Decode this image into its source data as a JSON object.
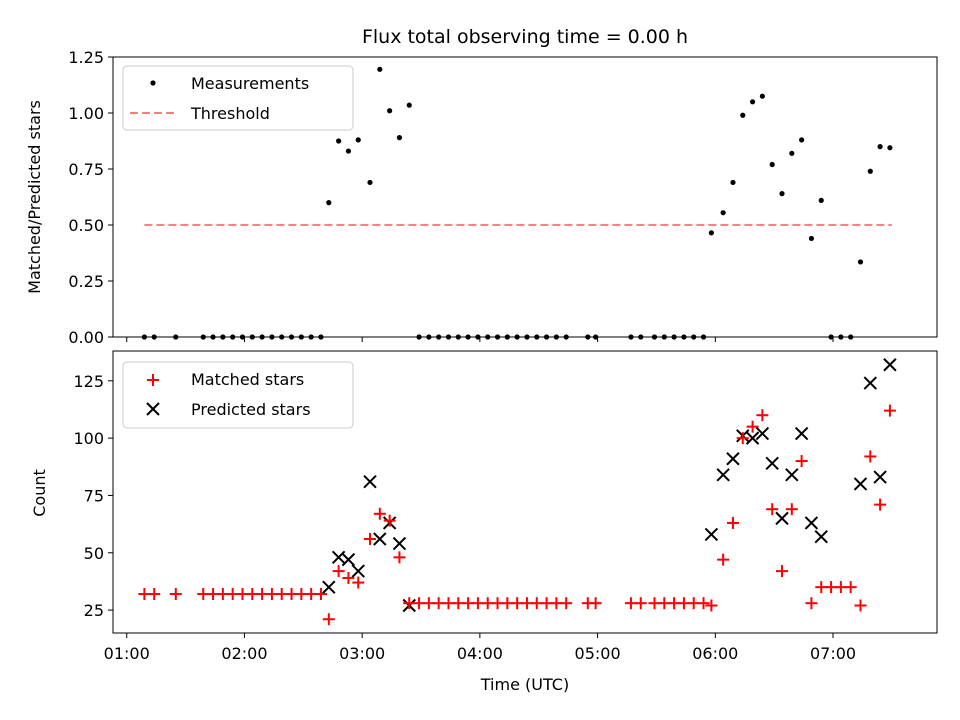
{
  "chart_data": [
    {
      "type": "scatter",
      "title": "Flux total observing time = 0.00 h",
      "xlabel": "",
      "ylabel": "Matched/Predicted stars",
      "ylim": [
        0,
        1.25
      ],
      "yticks": [
        "0.00",
        "0.25",
        "0.50",
        "0.75",
        "1.00",
        "1.25"
      ],
      "legend": {
        "position": "top-left",
        "entries": [
          "Measurements",
          "Threshold"
        ]
      },
      "threshold": {
        "name": "Threshold",
        "value": 0.5,
        "x_start": "01:09",
        "x_end": "07:30",
        "color": "#ff7f7f"
      },
      "series": [
        {
          "name": "Measurements",
          "color": "#000000",
          "marker": "dot",
          "points": [
            [
              "01:09",
              0.0
            ],
            [
              "01:14",
              0.0
            ],
            [
              "01:25",
              0.0
            ],
            [
              "01:39",
              0.0
            ],
            [
              "01:44",
              0.0
            ],
            [
              "01:49",
              0.0
            ],
            [
              "01:54",
              0.0
            ],
            [
              "01:59",
              0.0
            ],
            [
              "02:04",
              0.0
            ],
            [
              "02:09",
              0.0
            ],
            [
              "02:14",
              0.0
            ],
            [
              "02:19",
              0.0
            ],
            [
              "02:24",
              0.0
            ],
            [
              "02:29",
              0.0
            ],
            [
              "02:34",
              0.0
            ],
            [
              "02:39",
              0.0
            ],
            [
              "02:43",
              0.6
            ],
            [
              "02:48",
              0.875
            ],
            [
              "02:53",
              0.83
            ],
            [
              "02:58",
              0.88
            ],
            [
              "03:04",
              0.69
            ],
            [
              "03:09",
              1.195
            ],
            [
              "03:14",
              1.01
            ],
            [
              "03:19",
              0.89
            ],
            [
              "03:24",
              1.035
            ],
            [
              "03:29",
              0.0
            ],
            [
              "03:34",
              0.0
            ],
            [
              "03:39",
              0.0
            ],
            [
              "03:44",
              0.0
            ],
            [
              "03:49",
              0.0
            ],
            [
              "03:54",
              0.0
            ],
            [
              "03:59",
              0.0
            ],
            [
              "04:04",
              0.0
            ],
            [
              "04:09",
              0.0
            ],
            [
              "04:14",
              0.0
            ],
            [
              "04:19",
              0.0
            ],
            [
              "04:24",
              0.0
            ],
            [
              "04:29",
              0.0
            ],
            [
              "04:34",
              0.0
            ],
            [
              "04:39",
              0.0
            ],
            [
              "04:44",
              0.0
            ],
            [
              "04:55",
              0.0
            ],
            [
              "04:59",
              0.0
            ],
            [
              "05:17",
              0.0
            ],
            [
              "05:22",
              0.0
            ],
            [
              "05:29",
              0.0
            ],
            [
              "05:34",
              0.0
            ],
            [
              "05:39",
              0.0
            ],
            [
              "05:44",
              0.0
            ],
            [
              "05:49",
              0.0
            ],
            [
              "05:54",
              0.0
            ],
            [
              "05:58",
              0.465
            ],
            [
              "06:04",
              0.555
            ],
            [
              "06:09",
              0.69
            ],
            [
              "06:14",
              0.99
            ],
            [
              "06:19",
              1.05
            ],
            [
              "06:24",
              1.075
            ],
            [
              "06:29",
              0.77
            ],
            [
              "06:34",
              0.64
            ],
            [
              "06:39",
              0.82
            ],
            [
              "06:44",
              0.88
            ],
            [
              "06:49",
              0.44
            ],
            [
              "06:54",
              0.61
            ],
            [
              "06:59",
              0.0
            ],
            [
              "07:04",
              0.0
            ],
            [
              "07:09",
              0.0
            ],
            [
              "07:14",
              0.335
            ],
            [
              "07:19",
              0.74
            ],
            [
              "07:24",
              0.85
            ],
            [
              "07:29",
              0.845
            ]
          ]
        }
      ]
    },
    {
      "type": "scatter",
      "title": "",
      "xlabel": "Time (UTC)",
      "ylabel": "Count",
      "ylim": [
        15,
        138
      ],
      "yticks": [
        "25",
        "50",
        "75",
        "100",
        "125"
      ],
      "xlim": [
        "00:53",
        "07:53"
      ],
      "xticks": [
        "01:00",
        "02:00",
        "03:00",
        "04:00",
        "05:00",
        "06:00",
        "07:00"
      ],
      "legend": {
        "position": "top-left",
        "entries": [
          "Matched stars",
          "Predicted stars"
        ]
      },
      "series": [
        {
          "name": "Matched stars",
          "color": "#ff0000",
          "marker": "plus",
          "points": [
            [
              "01:09",
              32
            ],
            [
              "01:14",
              32
            ],
            [
              "01:25",
              32
            ],
            [
              "01:39",
              32
            ],
            [
              "01:44",
              32
            ],
            [
              "01:49",
              32
            ],
            [
              "01:54",
              32
            ],
            [
              "01:59",
              32
            ],
            [
              "02:04",
              32
            ],
            [
              "02:09",
              32
            ],
            [
              "02:14",
              32
            ],
            [
              "02:19",
              32
            ],
            [
              "02:24",
              32
            ],
            [
              "02:29",
              32
            ],
            [
              "02:34",
              32
            ],
            [
              "02:39",
              32
            ],
            [
              "02:43",
              21
            ],
            [
              "02:48",
              42
            ],
            [
              "02:53",
              39
            ],
            [
              "02:58",
              37
            ],
            [
              "03:04",
              56
            ],
            [
              "03:09",
              67
            ],
            [
              "03:14",
              64
            ],
            [
              "03:19",
              48
            ],
            [
              "03:24",
              28
            ],
            [
              "03:29",
              28
            ],
            [
              "03:34",
              28
            ],
            [
              "03:39",
              28
            ],
            [
              "03:44",
              28
            ],
            [
              "03:49",
              28
            ],
            [
              "03:54",
              28
            ],
            [
              "03:59",
              28
            ],
            [
              "04:04",
              28
            ],
            [
              "04:09",
              28
            ],
            [
              "04:14",
              28
            ],
            [
              "04:19",
              28
            ],
            [
              "04:24",
              28
            ],
            [
              "04:29",
              28
            ],
            [
              "04:34",
              28
            ],
            [
              "04:39",
              28
            ],
            [
              "04:44",
              28
            ],
            [
              "04:55",
              28
            ],
            [
              "04:59",
              28
            ],
            [
              "05:17",
              28
            ],
            [
              "05:22",
              28
            ],
            [
              "05:29",
              28
            ],
            [
              "05:34",
              28
            ],
            [
              "05:39",
              28
            ],
            [
              "05:44",
              28
            ],
            [
              "05:49",
              28
            ],
            [
              "05:54",
              28
            ],
            [
              "05:58",
              27
            ],
            [
              "06:04",
              47
            ],
            [
              "06:09",
              63
            ],
            [
              "06:14",
              100
            ],
            [
              "06:19",
              105
            ],
            [
              "06:24",
              110
            ],
            [
              "06:29",
              69
            ],
            [
              "06:34",
              42
            ],
            [
              "06:39",
              69
            ],
            [
              "06:44",
              90
            ],
            [
              "06:49",
              28
            ],
            [
              "06:54",
              35
            ],
            [
              "06:59",
              35
            ],
            [
              "07:04",
              35
            ],
            [
              "07:09",
              35
            ],
            [
              "07:14",
              27
            ],
            [
              "07:19",
              92
            ],
            [
              "07:24",
              71
            ],
            [
              "07:29",
              112
            ]
          ]
        },
        {
          "name": "Predicted stars",
          "color": "#000000",
          "marker": "x",
          "points": [
            [
              "02:43",
              35
            ],
            [
              "02:48",
              48
            ],
            [
              "02:53",
              47
            ],
            [
              "02:58",
              42
            ],
            [
              "03:04",
              81
            ],
            [
              "03:09",
              56
            ],
            [
              "03:14",
              63
            ],
            [
              "03:19",
              54
            ],
            [
              "03:24",
              27
            ],
            [
              "05:58",
              58
            ],
            [
              "06:04",
              84
            ],
            [
              "06:09",
              91
            ],
            [
              "06:14",
              101
            ],
            [
              "06:19",
              100
            ],
            [
              "06:24",
              102
            ],
            [
              "06:29",
              89
            ],
            [
              "06:34",
              65
            ],
            [
              "06:39",
              84
            ],
            [
              "06:44",
              102
            ],
            [
              "06:49",
              63
            ],
            [
              "06:54",
              57
            ],
            [
              "07:14",
              80
            ],
            [
              "07:19",
              124
            ],
            [
              "07:24",
              83
            ],
            [
              "07:29",
              132
            ]
          ]
        }
      ]
    }
  ]
}
